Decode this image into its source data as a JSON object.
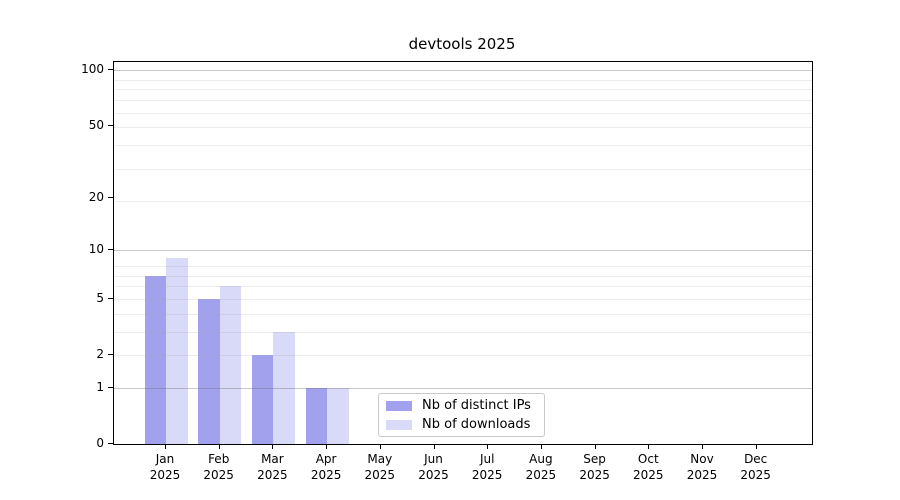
{
  "title": "devtools 2025",
  "chart_data": {
    "type": "bar",
    "title": "devtools 2025",
    "categories": [
      "Jan",
      "Feb",
      "Mar",
      "Apr",
      "May",
      "Jun",
      "Jul",
      "Aug",
      "Sep",
      "Oct",
      "Nov",
      "Dec"
    ],
    "category_year": "2025",
    "series": [
      {
        "name": "Nb of distinct IPs",
        "color": "#a1a1ee",
        "values": [
          7,
          5,
          2,
          1,
          0,
          0,
          0,
          0,
          0,
          0,
          0,
          0
        ]
      },
      {
        "name": "Nb of downloads",
        "color": "#d9d9f8",
        "values": [
          9,
          6,
          3,
          1,
          0,
          0,
          0,
          0,
          0,
          0,
          0,
          0
        ]
      }
    ],
    "y_scale": "log10(value+1)",
    "y_ticks": [
      0,
      1,
      2,
      5,
      10,
      20,
      50,
      100
    ],
    "y_major_gridlines": [
      1,
      10,
      100
    ],
    "y_minor_gridlines": [
      2,
      3,
      4,
      5,
      6,
      7,
      8,
      19,
      29,
      39,
      49,
      59,
      69,
      79,
      89
    ],
    "ylim": [
      0,
      110
    ],
    "grid": true,
    "legend_position": "inside lower-center-left",
    "colors": {
      "major_grid": "#c8c8c8",
      "minor_grid": "#ececec",
      "axis": "#000000",
      "background": "#ffffff"
    }
  }
}
